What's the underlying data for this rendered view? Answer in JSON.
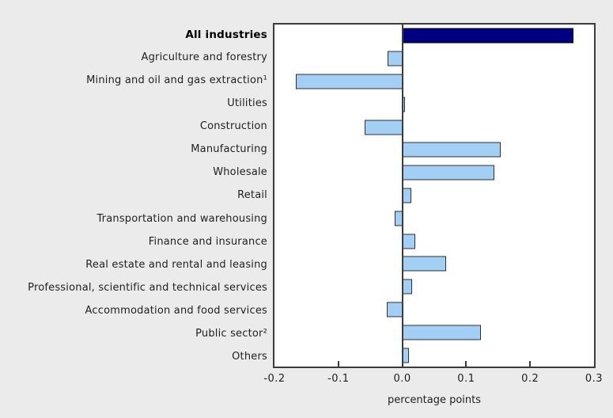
{
  "chart_data": {
    "type": "bar",
    "orientation": "horizontal",
    "title": "",
    "xlabel": "percentage points",
    "ylabel": "",
    "xlim": [
      -0.2,
      0.3
    ],
    "grid": false,
    "legend": false,
    "categories": [
      "All industries",
      "Agriculture and forestry",
      "Mining and oil and gas extraction¹",
      "Utilities",
      "Construction",
      "Manufacturing",
      "Wholesale",
      "Retail",
      "Transportation and warehousing",
      "Finance and insurance",
      "Real estate and rental and leasing",
      "Professional, scientific and technical services",
      "Accommodation and food services",
      "Public sector²",
      "Others"
    ],
    "values": [
      0.265,
      -0.02,
      -0.164,
      0.002,
      -0.057,
      0.152,
      0.142,
      0.012,
      -0.009,
      0.018,
      0.066,
      0.013,
      -0.022,
      0.121,
      0.008
    ],
    "highlight_index": 0,
    "x_ticks": [
      "-0.2",
      "-0.1",
      "0.0",
      "0.1",
      "0.2",
      "0.3"
    ],
    "colors": {
      "highlight_bar": "#000080",
      "highlight_border": "#000000",
      "default_bar": "#A3CFF5",
      "bar_border": "#2B313C",
      "axis": "#3C3C3C",
      "plot_background": "#FFFFFF",
      "page_background": "#EBEBEB",
      "text": "#1F1F1F"
    }
  }
}
